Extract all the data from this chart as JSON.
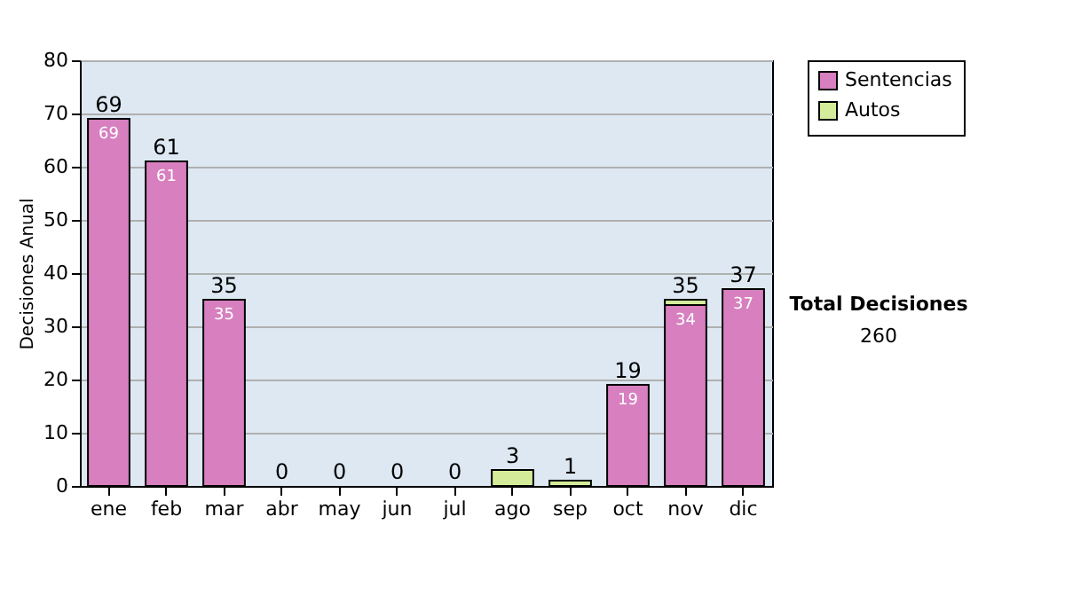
{
  "chart_data": {
    "type": "bar",
    "stacked": true,
    "ylabel": "Decisiones Anual",
    "categories": [
      "ene",
      "feb",
      "mar",
      "abr",
      "may",
      "jun",
      "jul",
      "ago",
      "sep",
      "oct",
      "nov",
      "dic"
    ],
    "series": [
      {
        "name": "Sentencias",
        "color": "#d77fbf",
        "values": [
          69,
          61,
          35,
          0,
          0,
          0,
          0,
          0,
          0,
          19,
          34,
          37
        ],
        "value_labels": [
          "69",
          "61",
          "35",
          null,
          null,
          null,
          null,
          null,
          null,
          "19",
          "34",
          "37"
        ]
      },
      {
        "name": "Autos",
        "color": "#d4ec9a",
        "values": [
          0,
          0,
          0,
          0,
          0,
          0,
          0,
          3,
          1,
          0,
          1,
          0
        ]
      }
    ],
    "totals": [
      "69",
      "61",
      "35",
      "0",
      "0",
      "0",
      "0",
      "3",
      "1",
      "19",
      "35",
      "37"
    ],
    "ylim": [
      0,
      80
    ],
    "yticks": [
      0,
      10,
      20,
      30,
      40,
      50,
      60,
      70,
      80
    ],
    "grid": "y",
    "legend": "right",
    "annotations": [
      "Total Decisiones",
      "260"
    ]
  }
}
